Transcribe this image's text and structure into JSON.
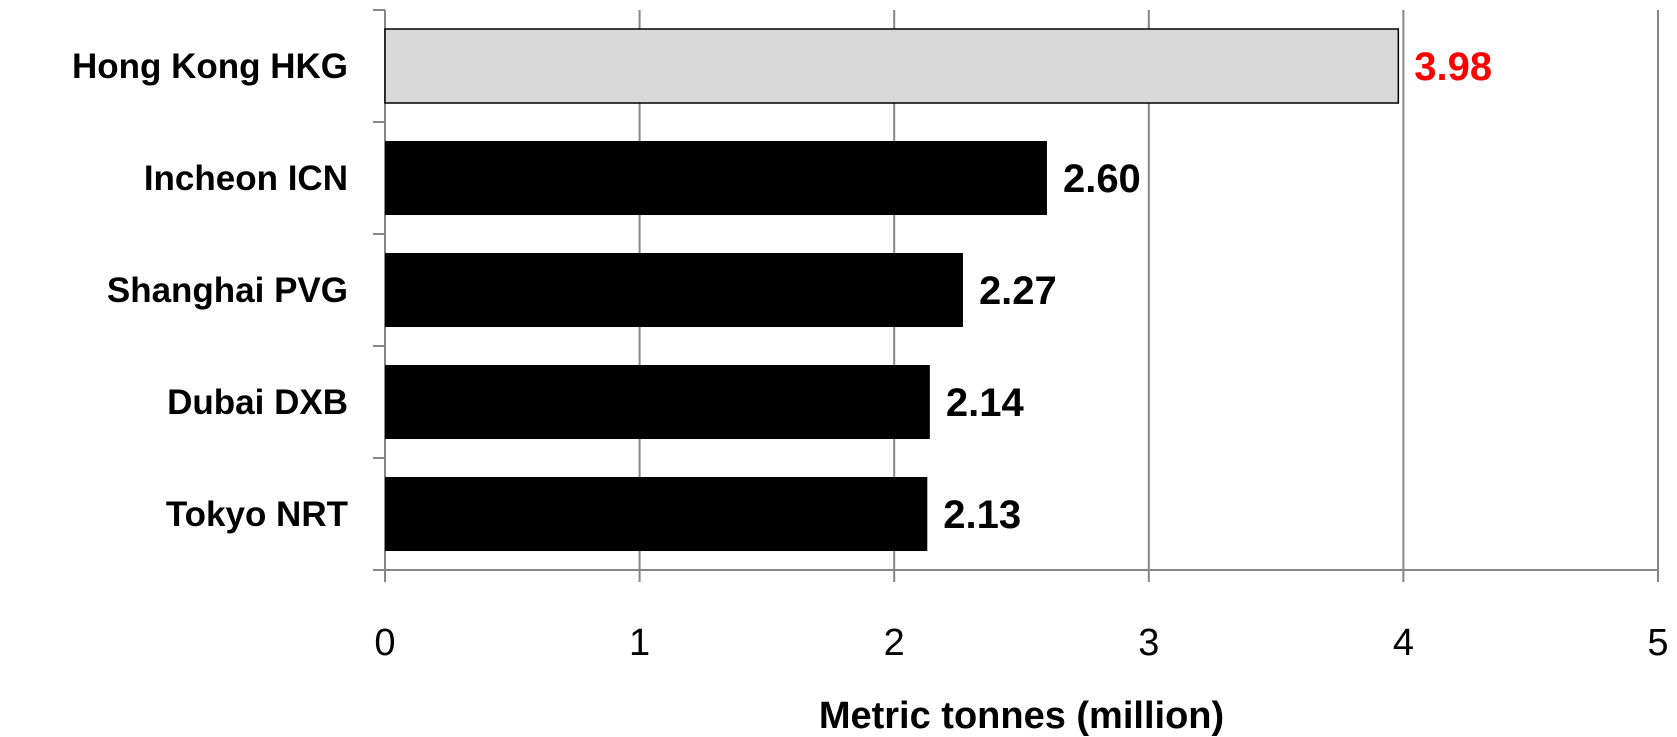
{
  "chart_data": {
    "type": "bar",
    "orientation": "horizontal",
    "title": "",
    "xlabel": "Metric tonnes (million)",
    "ylabel": "",
    "categories": [
      "Hong Kong HKG",
      "Incheon ICN",
      "Shanghai PVG",
      "Dubai DXB",
      "Tokyo NRT"
    ],
    "values": [
      3.98,
      2.6,
      2.27,
      2.14,
      2.13
    ],
    "value_labels": [
      "3.98",
      "2.60",
      "2.27",
      "2.14",
      "2.13"
    ],
    "xlim": [
      0,
      5
    ],
    "xticks": [
      "0",
      "1",
      "2",
      "3",
      "4",
      "5"
    ],
    "grid": "vertical",
    "legend": "none",
    "colors": {
      "highlight_bar": "#d9d9d9",
      "highlight_label": "#ff0000",
      "bar": "#000000",
      "label": "#000000",
      "grid": "#868686"
    },
    "highlight_index": 0
  }
}
